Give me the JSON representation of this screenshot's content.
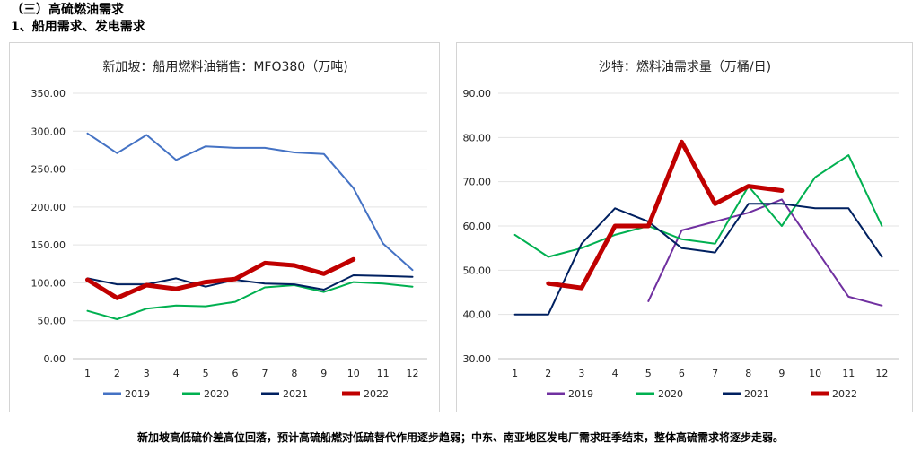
{
  "heading": "（三）高硫燃油需求",
  "subheading": "1、船用需求、发电需求",
  "footer": "新加坡高低硫价差高位回落，预计高硫船燃对低硫替代作用逐步趋弱；中东、南亚地区发电厂需求旺季结束，整体高硫需求将逐步走弱。",
  "chart_data": [
    {
      "type": "line",
      "title": "新加坡：船用燃料油销售：MFO380（万吨)",
      "x": [
        1,
        2,
        3,
        4,
        5,
        6,
        7,
        8,
        9,
        10,
        11,
        12
      ],
      "ylim": [
        0,
        350
      ],
      "ytick_step": 50,
      "ytick_decimals": 2,
      "grid": true,
      "legend_position": "bottom",
      "series": [
        {
          "name": "2019",
          "color": "#4472C4",
          "width": 2,
          "values": [
            297,
            271,
            295,
            262,
            280,
            278,
            278,
            272,
            270,
            225,
            152,
            117
          ]
        },
        {
          "name": "2020",
          "color": "#00B050",
          "width": 2,
          "values": [
            63,
            52,
            66,
            70,
            69,
            75,
            94,
            97,
            88,
            101,
            99,
            95
          ]
        },
        {
          "name": "2021",
          "color": "#002060",
          "width": 2,
          "values": [
            106,
            98,
            98,
            106,
            95,
            104,
            99,
            98,
            91,
            110,
            109,
            108
          ]
        },
        {
          "name": "2022",
          "color": "#C00000",
          "width": 5,
          "values": [
            104,
            80,
            97,
            92,
            101,
            105,
            126,
            123,
            112,
            131,
            null,
            null
          ]
        }
      ]
    },
    {
      "type": "line",
      "title": "沙特：燃料油需求量（万桶/日)",
      "x": [
        1,
        2,
        3,
        4,
        5,
        6,
        7,
        8,
        9,
        10,
        11,
        12
      ],
      "ylim": [
        30,
        90
      ],
      "ytick_step": 10,
      "ytick_decimals": 2,
      "grid": true,
      "legend_position": "bottom",
      "series": [
        {
          "name": "2019",
          "color": "#7030A0",
          "width": 2,
          "values": [
            null,
            null,
            null,
            null,
            43,
            59,
            61,
            63,
            66,
            55,
            44,
            42
          ]
        },
        {
          "name": "2020",
          "color": "#00B050",
          "width": 2,
          "values": [
            58,
            53,
            55,
            58,
            60,
            57,
            56,
            69,
            60,
            71,
            76,
            60
          ]
        },
        {
          "name": "2021",
          "color": "#002060",
          "width": 2,
          "values": [
            40,
            40,
            56,
            64,
            61,
            55,
            54,
            65,
            65,
            64,
            64,
            53
          ]
        },
        {
          "name": "2022",
          "color": "#C00000",
          "width": 5,
          "values": [
            null,
            47,
            46,
            60,
            60,
            79,
            65,
            69,
            68,
            null,
            null,
            null
          ]
        }
      ]
    }
  ]
}
